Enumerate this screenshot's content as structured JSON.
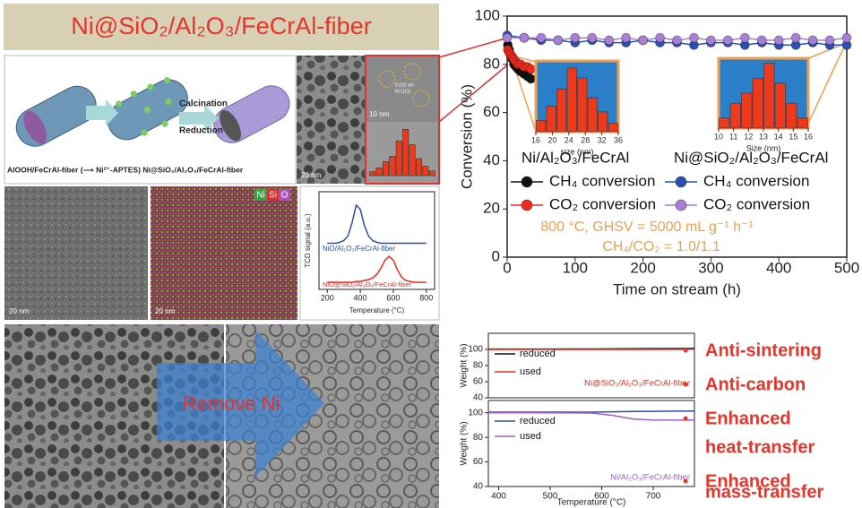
{
  "banner": {
    "title": "Ni@SiO₂/Al₂O₃/FeCrAl-fiber"
  },
  "scheme": {
    "calcination": "Calcination",
    "reduction": "Reduction",
    "caption": "AlOOH/FeCrAl-fiber (⟶ Ni²⁺-APTES) Ni@SiO₂/Al₂O₃/FeCrAl-fiber"
  },
  "hrtem": {
    "spacing": "0.202 nm",
    "plane": "Ni (111)"
  },
  "scale_bars": [
    "20 nm",
    "10 nm",
    "20 nm",
    "20 nm"
  ],
  "eds_legend": [
    "Ni",
    "Si",
    "O"
  ],
  "arrow_label": "Remove Ni",
  "bullets": [
    "Anti-sintering",
    "Anti-carbon",
    "Enhanced",
    "heat-transfer",
    "Enhanced",
    "mass-transfer"
  ],
  "chart_data": [
    {
      "type": "line",
      "xlabel": "Time on stream (h)",
      "ylabel": "Conversion (%)",
      "xlim": [
        0,
        500
      ],
      "xticks": [
        0,
        100,
        200,
        300,
        400,
        500
      ],
      "ylim": [
        0,
        100
      ],
      "yticks": [
        0,
        20,
        40,
        60,
        80,
        100
      ],
      "groups": [
        "Ni/Al₂O₃/FeCrAl",
        "Ni@SiO₂/Al₂O₃/FeCrAl"
      ],
      "annotations": [
        "800 °C, GHSV = 5000 mL g⁻¹ h⁻¹",
        "CH₄/CO₂ = 1.0/1.1"
      ],
      "series": [
        {
          "name": "CH₄ conversion",
          "color": "#111111",
          "x": [
            1,
            3,
            5,
            8,
            10,
            13,
            16,
            20,
            25,
            30,
            35
          ],
          "values": [
            88,
            86,
            84,
            82,
            80,
            79,
            78,
            77,
            76,
            75,
            74
          ]
        },
        {
          "name": "CO₂ conversion",
          "color": "#ee2a1e",
          "x": [
            1,
            3,
            5,
            8,
            10,
            13,
            16,
            20,
            25,
            30,
            35
          ],
          "values": [
            86,
            85,
            84,
            83,
            82,
            81,
            80,
            80,
            79,
            79,
            78
          ]
        },
        {
          "name": "CH₄ conversion",
          "color": "#2a4fb0",
          "x": [
            0,
            25,
            50,
            75,
            100,
            125,
            150,
            175,
            200,
            225,
            250,
            275,
            300,
            325,
            350,
            375,
            400,
            425,
            450,
            475,
            500
          ],
          "values": [
            92,
            91,
            90,
            90,
            89,
            90,
            89,
            89,
            90,
            89,
            89,
            88,
            89,
            89,
            88,
            89,
            88,
            88,
            89,
            88,
            88
          ]
        },
        {
          "name": "CO₂ conversion",
          "color": "#a77fd4",
          "x": [
            0,
            25,
            50,
            75,
            100,
            125,
            150,
            175,
            200,
            225,
            250,
            275,
            300,
            325,
            350,
            375,
            400,
            425,
            450,
            475,
            500
          ],
          "values": [
            91,
            91,
            91,
            90,
            91,
            91,
            90,
            91,
            90,
            91,
            90,
            91,
            90,
            90,
            91,
            90,
            90,
            91,
            90,
            90,
            91
          ]
        }
      ]
    },
    {
      "type": "histogram",
      "xlabel": "size (nm)",
      "xlim": [
        16,
        36
      ],
      "xticks": [
        16,
        20,
        24,
        28,
        32,
        36
      ],
      "bins": [
        16,
        18.5,
        21,
        23.5,
        26,
        28.5,
        31,
        33.5,
        36
      ],
      "values": [
        8,
        18,
        30,
        45,
        38,
        24,
        14,
        6
      ],
      "ylim": [
        0,
        50
      ],
      "color": "#ee3a1c"
    },
    {
      "type": "histogram",
      "xlabel": "Size (nm)",
      "xlim": [
        10,
        16
      ],
      "xticks": [
        10,
        11,
        12,
        13,
        14,
        15,
        16
      ],
      "bins": [
        10,
        10.75,
        11.5,
        12.25,
        13,
        13.75,
        14.5,
        15.25,
        16
      ],
      "values": [
        10,
        25,
        35,
        50,
        65,
        45,
        25,
        10
      ],
      "ylim": [
        0,
        70
      ],
      "color": "#ee3a1c"
    },
    {
      "type": "histogram",
      "xlim": [
        0,
        10
      ],
      "bins": [
        0,
        1,
        2,
        3,
        4,
        5,
        6,
        7,
        8,
        9,
        10
      ],
      "values": [
        5,
        10,
        18,
        25,
        45,
        60,
        40,
        22,
        12,
        6
      ],
      "ylim": [
        0,
        65
      ],
      "color": "#ee3a1c"
    },
    {
      "type": "line",
      "xlabel": "Temperature (°C)",
      "ylabel": "TCD signal (a.u.)",
      "xlim": [
        150,
        850
      ],
      "xticks": [
        200,
        400,
        600,
        800
      ],
      "ylim": [
        0,
        1.1
      ],
      "x": [
        200,
        225,
        250,
        275,
        300,
        325,
        350,
        375,
        400,
        425,
        450,
        475,
        500,
        525,
        550,
        575,
        600,
        625,
        650,
        675,
        700,
        725,
        750,
        775,
        800
      ],
      "series": [
        {
          "name": "NiO/Al₂O₃/FeCrAl-fiber",
          "color": "#2a4fb0",
          "values": [
            0.52,
            0.52,
            0.52,
            0.53,
            0.55,
            0.6,
            0.75,
            0.95,
            0.9,
            0.72,
            0.6,
            0.55,
            0.53,
            0.52,
            0.52,
            0.52,
            0.52,
            0.52,
            0.52,
            0.52,
            0.52,
            0.52,
            0.52,
            0.52,
            0.52
          ]
        },
        {
          "name": "NiO@SiO₂/Al₂O₃/FeCrAl-fiber",
          "color": "#ee2a1e",
          "values": [
            0.08,
            0.08,
            0.08,
            0.08,
            0.08,
            0.08,
            0.08,
            0.09,
            0.09,
            0.1,
            0.11,
            0.13,
            0.17,
            0.24,
            0.33,
            0.37,
            0.33,
            0.22,
            0.14,
            0.1,
            0.09,
            0.08,
            0.08,
            0.08,
            0.08
          ]
        }
      ]
    },
    {
      "type": "line",
      "ylabel": "Weight (%)",
      "label": "Ni@SiO₂/Al₂O₃/FeCrAl-fiber",
      "xlim": [
        380,
        780
      ],
      "ylim": [
        40,
        120
      ],
      "yticks": [
        40,
        60,
        80,
        100
      ],
      "x": [
        380,
        480,
        580,
        680,
        780
      ],
      "series": [
        {
          "name": "reduced",
          "color": "#111111",
          "values": [
            100.5,
            100.5,
            100.6,
            101,
            101.2
          ]
        },
        {
          "name": "used",
          "color": "#ee2a1e",
          "values": [
            100,
            100,
            100,
            100,
            100.2
          ]
        }
      ]
    },
    {
      "type": "line",
      "ylabel": "Weight (%)",
      "xlabel": "Temperature (°C)",
      "label": "Ni/Al₂O₃/FeCrAl-fiber",
      "xlim": [
        380,
        780
      ],
      "xticks": [
        400,
        500,
        600,
        700
      ],
      "ylim": [
        40,
        110
      ],
      "yticks": [
        40,
        60,
        80,
        100
      ],
      "x": [
        380,
        480,
        580,
        620,
        660,
        700,
        780
      ],
      "series": [
        {
          "name": "reduced",
          "color": "#2a4fb0",
          "values": [
            100.5,
            100.5,
            100.5,
            100.8,
            101,
            101.2,
            101.5
          ]
        },
        {
          "name": "used",
          "color": "#a060c8",
          "values": [
            100,
            100,
            99.8,
            98,
            95,
            94,
            94
          ]
        }
      ]
    }
  ]
}
